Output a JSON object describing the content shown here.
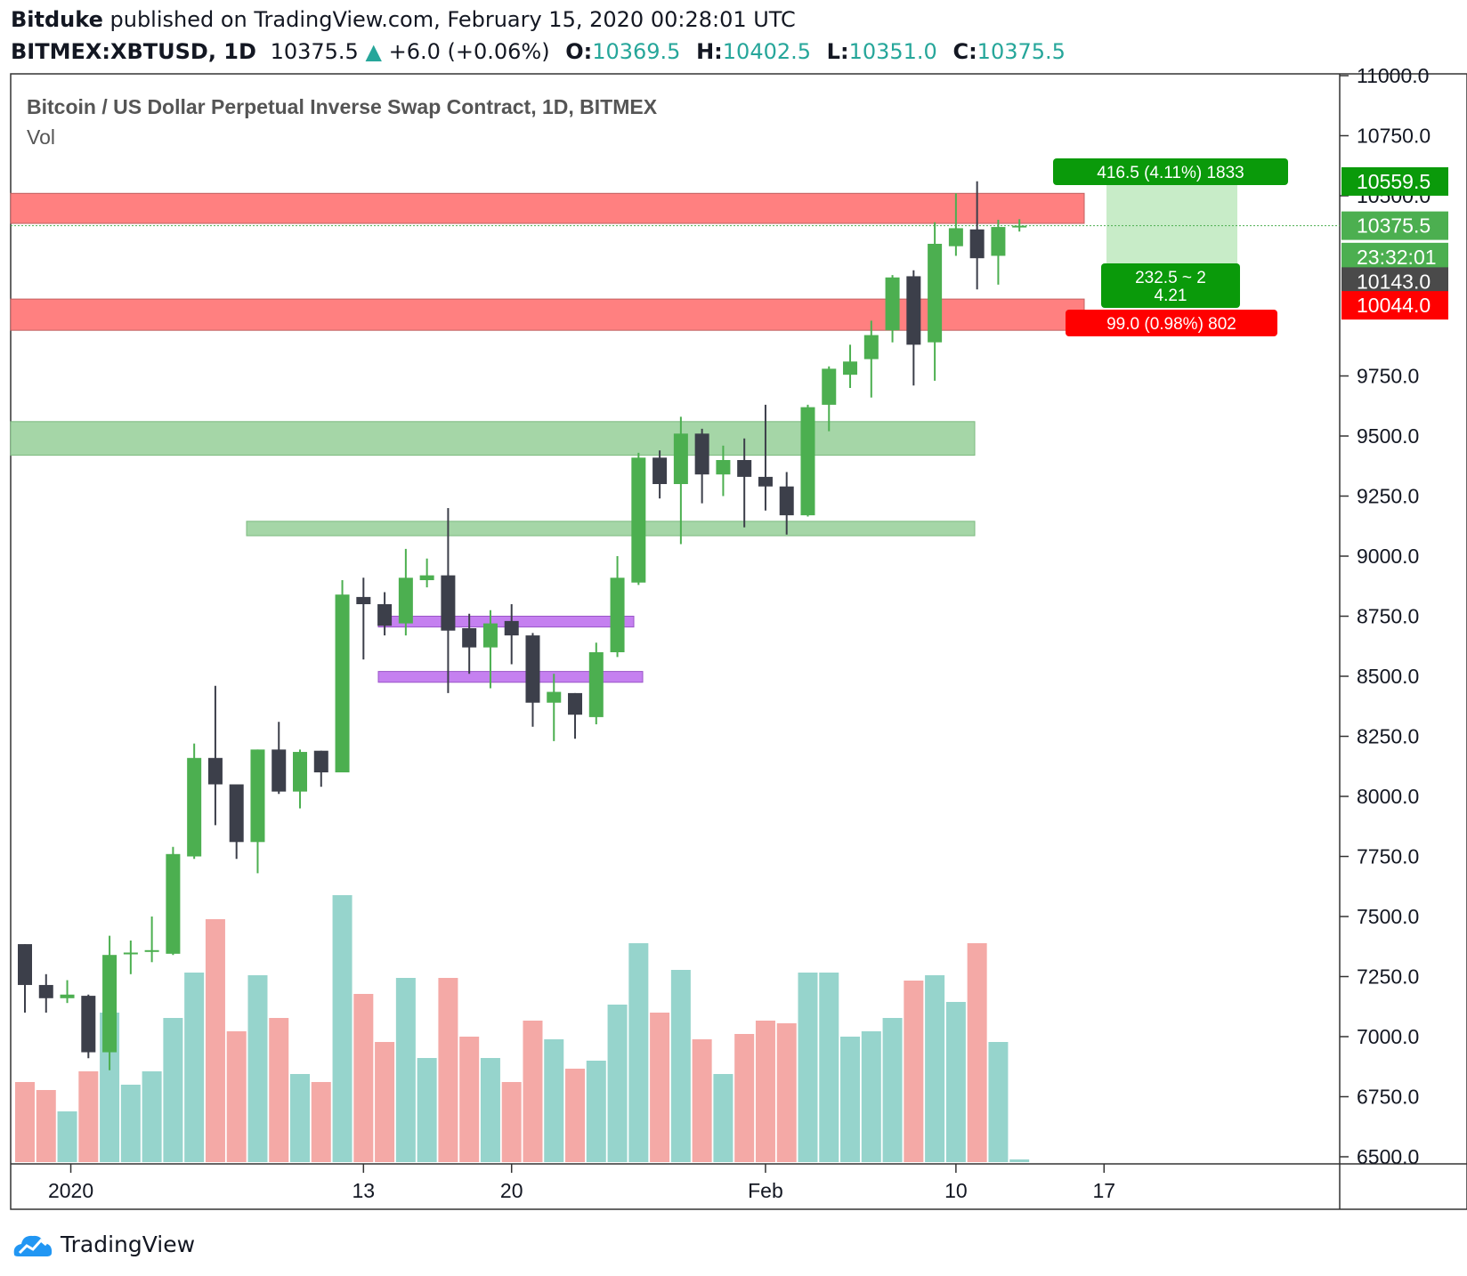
{
  "header": {
    "author": "Bitduke",
    "published_text": "published on TradingView.com, February 15, 2020 00:28:01 UTC",
    "symbol": "BITMEX:XBTUSD, 1D",
    "last": "10375.5",
    "change": "+6.0 (+0.06%)",
    "o_label": "O:",
    "o_value": "10369.5",
    "h_label": "H:",
    "h_value": "10402.5",
    "l_label": "L:",
    "l_value": "10351.0",
    "c_label": "C:",
    "c_value": "10375.5"
  },
  "legend": {
    "title": "Bitcoin / US Dollar Perpetual Inverse Swap Contract, 1D, BITMEX",
    "vol_label": "Vol"
  },
  "footer": {
    "brand": "TradingView"
  },
  "colors": {
    "up": "#4caf50",
    "down": "#3c3f4a",
    "vol_up": "#96d4cc",
    "vol_down": "#f4a9a6",
    "zone_red": "#ff8080",
    "zone_green": "#a5d6a7",
    "zone_purple": "#c580f0",
    "profit": "#0a9a0a",
    "loss": "#ff0000"
  },
  "chart_data": {
    "type": "candlestick",
    "y_axis": {
      "ticks": [
        "11000.0",
        "10750.0",
        "10500.0",
        "9750.0",
        "9500.0",
        "9250.0",
        "9000.0",
        "8750.0",
        "8500.0",
        "8250.0",
        "8000.0",
        "7750.0",
        "7500.0",
        "7250.0",
        "7000.0",
        "6750.0",
        "6500.0"
      ],
      "range": [
        6500,
        11000
      ]
    },
    "x_axis": {
      "tick_labels": [
        "2020",
        "13",
        "20",
        "Feb",
        "10",
        "17"
      ]
    },
    "price_labels": [
      {
        "text": "10559.5",
        "value": 10559.5,
        "kind": "profit"
      },
      {
        "text": "10375.5",
        "value": 10375.5,
        "kind": "last"
      },
      {
        "text": "23:32:01",
        "value": 10245,
        "kind": "countdown"
      },
      {
        "text": "10143.0",
        "value": 10143.0,
        "kind": "cursor"
      },
      {
        "text": "10044.0",
        "value": 10044.0,
        "kind": "loss"
      }
    ],
    "position_tool": {
      "target_label": "416.5 (4.11%) 1833",
      "ratio_line1": "232.5 ~ 2",
      "ratio_line2": "4.21",
      "stop_label": "99.0 (0.98%) 802",
      "entry": 10143.0,
      "target": 10559.5,
      "stop": 10044.0
    },
    "zones": [
      {
        "color": "red",
        "from": 10385,
        "to": 10510
      },
      {
        "color": "red",
        "from": 9940,
        "to": 10070
      },
      {
        "color": "green",
        "from": 9420,
        "to": 9560
      },
      {
        "color": "green",
        "from": 9085,
        "to": 9145
      },
      {
        "color": "purple",
        "from": 8705,
        "to": 8750
      },
      {
        "color": "purple",
        "from": 8475,
        "to": 8520
      }
    ],
    "candles": [
      {
        "date": "Dec 31",
        "o": 7385,
        "h": 7385,
        "l": 7100,
        "c": 7215
      },
      {
        "date": "Jan 1",
        "o": 7215,
        "h": 7260,
        "l": 7100,
        "c": 7160
      },
      {
        "date": "Jan 2",
        "o": 7160,
        "h": 7235,
        "l": 7140,
        "c": 7175
      },
      {
        "date": "Jan 3",
        "o": 7170,
        "h": 7175,
        "l": 6910,
        "c": 6935
      },
      {
        "date": "Jan 4",
        "o": 6935,
        "h": 7420,
        "l": 6860,
        "c": 7340
      },
      {
        "date": "Jan 5",
        "o": 7345,
        "h": 7400,
        "l": 7260,
        "c": 7350
      },
      {
        "date": "Jan 6",
        "o": 7355,
        "h": 7500,
        "l": 7310,
        "c": 7360
      },
      {
        "date": "Jan 7",
        "o": 7345,
        "h": 7790,
        "l": 7340,
        "c": 7760
      },
      {
        "date": "Jan 8",
        "o": 7750,
        "h": 8220,
        "l": 7740,
        "c": 8160
      },
      {
        "date": "Jan 9",
        "o": 8160,
        "h": 8460,
        "l": 7880,
        "c": 8050
      },
      {
        "date": "Jan 10",
        "o": 8050,
        "h": 8050,
        "l": 7740,
        "c": 7810
      },
      {
        "date": "Jan 11",
        "o": 7810,
        "h": 8195,
        "l": 7680,
        "c": 8195
      },
      {
        "date": "Jan 12",
        "o": 8195,
        "h": 8310,
        "l": 8010,
        "c": 8020
      },
      {
        "date": "Jan 13",
        "o": 8020,
        "h": 8195,
        "l": 7950,
        "c": 8185
      },
      {
        "date": "Jan 14",
        "o": 8190,
        "h": 8190,
        "l": 8040,
        "c": 8100
      },
      {
        "date": "Jan 15",
        "o": 8100,
        "h": 8900,
        "l": 8100,
        "c": 8840
      },
      {
        "date": "Jan 16",
        "o": 8830,
        "h": 8910,
        "l": 8570,
        "c": 8800
      },
      {
        "date": "Jan 17",
        "o": 8800,
        "h": 8850,
        "l": 8670,
        "c": 8710
      },
      {
        "date": "Jan 18",
        "o": 8720,
        "h": 9030,
        "l": 8670,
        "c": 8910
      },
      {
        "date": "Jan 19",
        "o": 8900,
        "h": 8990,
        "l": 8870,
        "c": 8920
      },
      {
        "date": "Jan 20",
        "o": 8920,
        "h": 9200,
        "l": 8430,
        "c": 8690
      },
      {
        "date": "Jan 21",
        "o": 8700,
        "h": 8760,
        "l": 8510,
        "c": 8620
      },
      {
        "date": "Jan 22",
        "o": 8620,
        "h": 8775,
        "l": 8450,
        "c": 8720
      },
      {
        "date": "Jan 23",
        "o": 8730,
        "h": 8800,
        "l": 8550,
        "c": 8670
      },
      {
        "date": "Jan 24",
        "o": 8670,
        "h": 8680,
        "l": 8290,
        "c": 8390
      },
      {
        "date": "Jan 25",
        "o": 8390,
        "h": 8510,
        "l": 8230,
        "c": 8435
      },
      {
        "date": "Jan 26",
        "o": 8430,
        "h": 8430,
        "l": 8240,
        "c": 8340
      },
      {
        "date": "Jan 27",
        "o": 8330,
        "h": 8640,
        "l": 8300,
        "c": 8600
      },
      {
        "date": "Jan 28",
        "o": 8600,
        "h": 9000,
        "l": 8580,
        "c": 8910
      },
      {
        "date": "Jan 29",
        "o": 8890,
        "h": 9430,
        "l": 8880,
        "c": 9410
      },
      {
        "date": "Jan 30",
        "o": 9410,
        "h": 9440,
        "l": 9240,
        "c": 9300
      },
      {
        "date": "Jan 31",
        "o": 9300,
        "h": 9580,
        "l": 9050,
        "c": 9510
      },
      {
        "date": "Feb 1",
        "o": 9510,
        "h": 9530,
        "l": 9220,
        "c": 9340
      },
      {
        "date": "Feb 2",
        "o": 9340,
        "h": 9460,
        "l": 9250,
        "c": 9400
      },
      {
        "date": "Feb 3",
        "o": 9400,
        "h": 9490,
        "l": 9120,
        "c": 9330
      },
      {
        "date": "Feb 4",
        "o": 9330,
        "h": 9630,
        "l": 9190,
        "c": 9290
      },
      {
        "date": "Feb 5",
        "o": 9290,
        "h": 9350,
        "l": 9090,
        "c": 9170
      },
      {
        "date": "Feb 6",
        "o": 9170,
        "h": 9630,
        "l": 9165,
        "c": 9620
      },
      {
        "date": "Feb 7",
        "o": 9630,
        "h": 9790,
        "l": 9520,
        "c": 9780
      },
      {
        "date": "Feb 8",
        "o": 9755,
        "h": 9880,
        "l": 9700,
        "c": 9810
      },
      {
        "date": "Feb 9",
        "o": 9820,
        "h": 9980,
        "l": 9660,
        "c": 9920
      },
      {
        "date": "Feb 10",
        "o": 9940,
        "h": 10170,
        "l": 9890,
        "c": 10160
      },
      {
        "date": "Feb 11",
        "o": 10165,
        "h": 10190,
        "l": 9710,
        "c": 9880
      },
      {
        "date": "Feb 12",
        "o": 9890,
        "h": 10390,
        "l": 9730,
        "c": 10300
      },
      {
        "date": "Feb 13",
        "o": 10290,
        "h": 10510,
        "l": 10250,
        "c": 10365
      },
      {
        "date": "Feb 14",
        "o": 10360,
        "h": 10560,
        "l": 10110,
        "c": 10240
      },
      {
        "date": "Feb 15",
        "o": 10250,
        "h": 10400,
        "l": 10130,
        "c": 10370
      },
      {
        "date": "Feb 16",
        "o": 10369.5,
        "h": 10402.5,
        "l": 10351,
        "c": 10375.5
      }
    ],
    "volume": [
      {
        "up": false,
        "v": 0.3
      },
      {
        "up": false,
        "v": 0.27
      },
      {
        "up": true,
        "v": 0.19
      },
      {
        "up": false,
        "v": 0.34
      },
      {
        "up": true,
        "v": 0.56
      },
      {
        "up": true,
        "v": 0.29
      },
      {
        "up": true,
        "v": 0.34
      },
      {
        "up": true,
        "v": 0.54
      },
      {
        "up": true,
        "v": 0.71
      },
      {
        "up": false,
        "v": 0.91
      },
      {
        "up": false,
        "v": 0.49
      },
      {
        "up": true,
        "v": 0.7
      },
      {
        "up": false,
        "v": 0.54
      },
      {
        "up": true,
        "v": 0.33
      },
      {
        "up": false,
        "v": 0.3
      },
      {
        "up": true,
        "v": 1.0
      },
      {
        "up": false,
        "v": 0.63
      },
      {
        "up": false,
        "v": 0.45
      },
      {
        "up": true,
        "v": 0.69
      },
      {
        "up": true,
        "v": 0.39
      },
      {
        "up": false,
        "v": 0.69
      },
      {
        "up": false,
        "v": 0.47
      },
      {
        "up": true,
        "v": 0.39
      },
      {
        "up": false,
        "v": 0.3
      },
      {
        "up": false,
        "v": 0.53
      },
      {
        "up": true,
        "v": 0.46
      },
      {
        "up": false,
        "v": 0.35
      },
      {
        "up": true,
        "v": 0.38
      },
      {
        "up": true,
        "v": 0.59
      },
      {
        "up": true,
        "v": 0.82
      },
      {
        "up": false,
        "v": 0.56
      },
      {
        "up": true,
        "v": 0.72
      },
      {
        "up": false,
        "v": 0.46
      },
      {
        "up": true,
        "v": 0.33
      },
      {
        "up": false,
        "v": 0.48
      },
      {
        "up": false,
        "v": 0.53
      },
      {
        "up": false,
        "v": 0.52
      },
      {
        "up": true,
        "v": 0.71
      },
      {
        "up": true,
        "v": 0.71
      },
      {
        "up": true,
        "v": 0.47
      },
      {
        "up": true,
        "v": 0.49
      },
      {
        "up": true,
        "v": 0.54
      },
      {
        "up": false,
        "v": 0.68
      },
      {
        "up": true,
        "v": 0.7
      },
      {
        "up": true,
        "v": 0.6
      },
      {
        "up": false,
        "v": 0.82
      },
      {
        "up": true,
        "v": 0.45
      },
      {
        "up": true,
        "v": 0.01
      }
    ]
  }
}
